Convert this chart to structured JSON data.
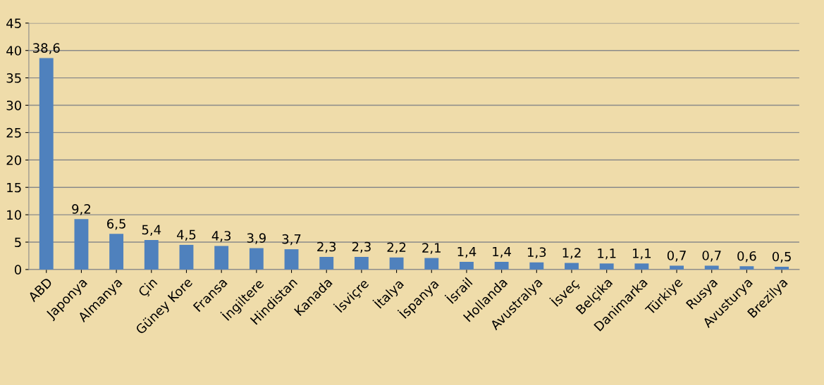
{
  "chart_data": {
    "type": "bar",
    "categories": [
      "ABD",
      "Japonya",
      "Almanya",
      "Çin",
      "Güney Kore",
      "Fransa",
      "İngiltere",
      "Hindistan",
      "Kanada",
      "İsviçre",
      "İtalya",
      "İspanya",
      "İsrail",
      "Hollanda",
      "Avustralya",
      "İsveç",
      "Belçika",
      "Danimarka",
      "Türkiye",
      "Rusya",
      "Avusturya",
      "Brezilya"
    ],
    "values": [
      38.6,
      9.2,
      6.5,
      5.4,
      4.5,
      4.3,
      3.9,
      3.7,
      2.3,
      2.3,
      2.2,
      2.1,
      1.4,
      1.4,
      1.3,
      1.2,
      1.1,
      1.1,
      0.7,
      0.7,
      0.6,
      0.5
    ],
    "value_labels": [
      "38,6",
      "9,2",
      "6,5",
      "5,4",
      "4,5",
      "4,3",
      "3,9",
      "3,7",
      "2,3",
      "2,3",
      "2,2",
      "2,1",
      "1,4",
      "1,4",
      "1,3",
      "1,2",
      "1,1",
      "1,1",
      "0,7",
      "0,7",
      "0,6",
      "0,5"
    ],
    "color": "#4f81bd",
    "ylim": [
      0,
      45
    ],
    "yticks": [
      0,
      5,
      10,
      15,
      20,
      25,
      30,
      35,
      40,
      45
    ],
    "grid": "y"
  }
}
